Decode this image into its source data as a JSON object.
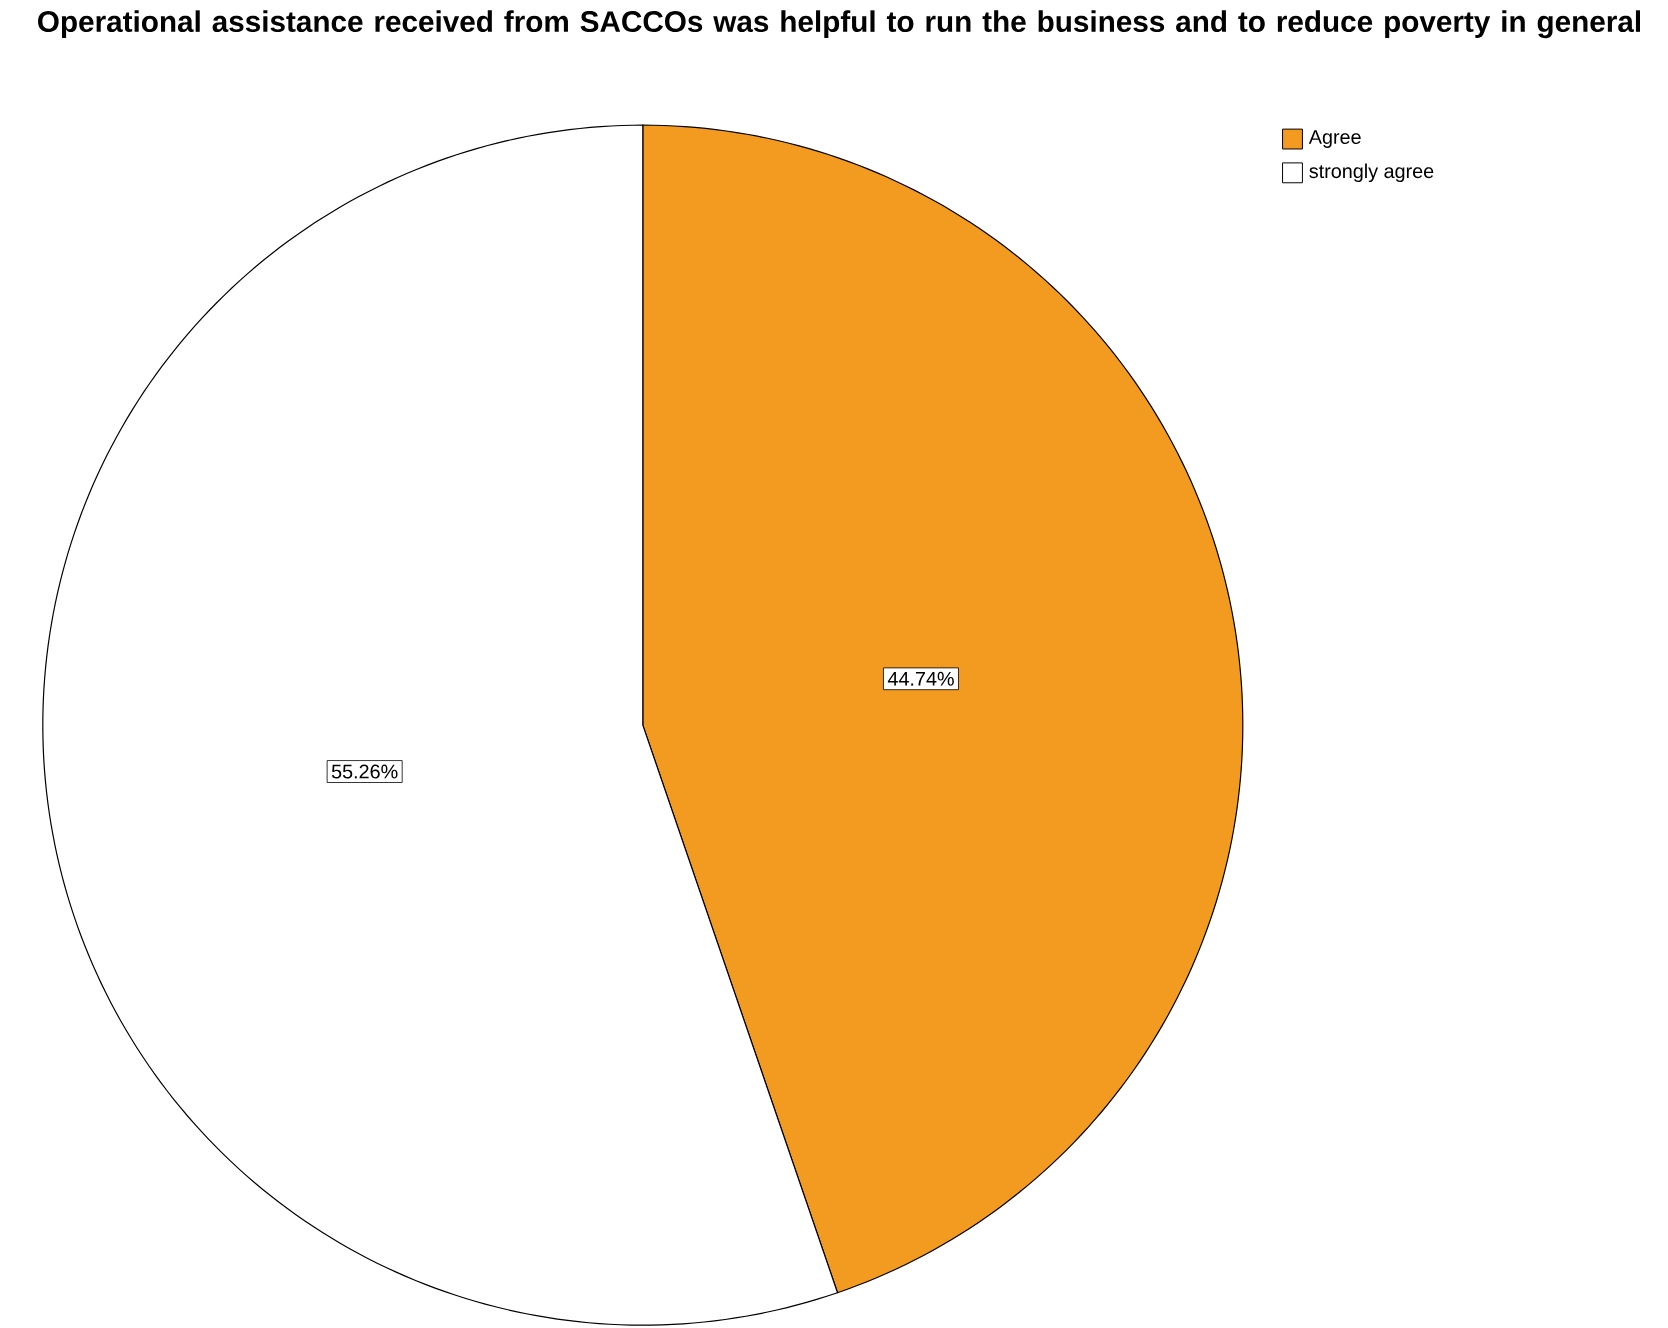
{
  "chart_data": {
    "type": "pie",
    "title": "Operational assistance received from SACCOs was helpful to run the business and to reduce poverty in general",
    "categories": [
      "Agree",
      "strongly agree"
    ],
    "values": [
      44.74,
      55.26
    ],
    "value_labels": [
      "44.74%",
      "55.26%"
    ],
    "colors": [
      "#f39a21",
      "#ffffff"
    ],
    "legend": "top right"
  }
}
